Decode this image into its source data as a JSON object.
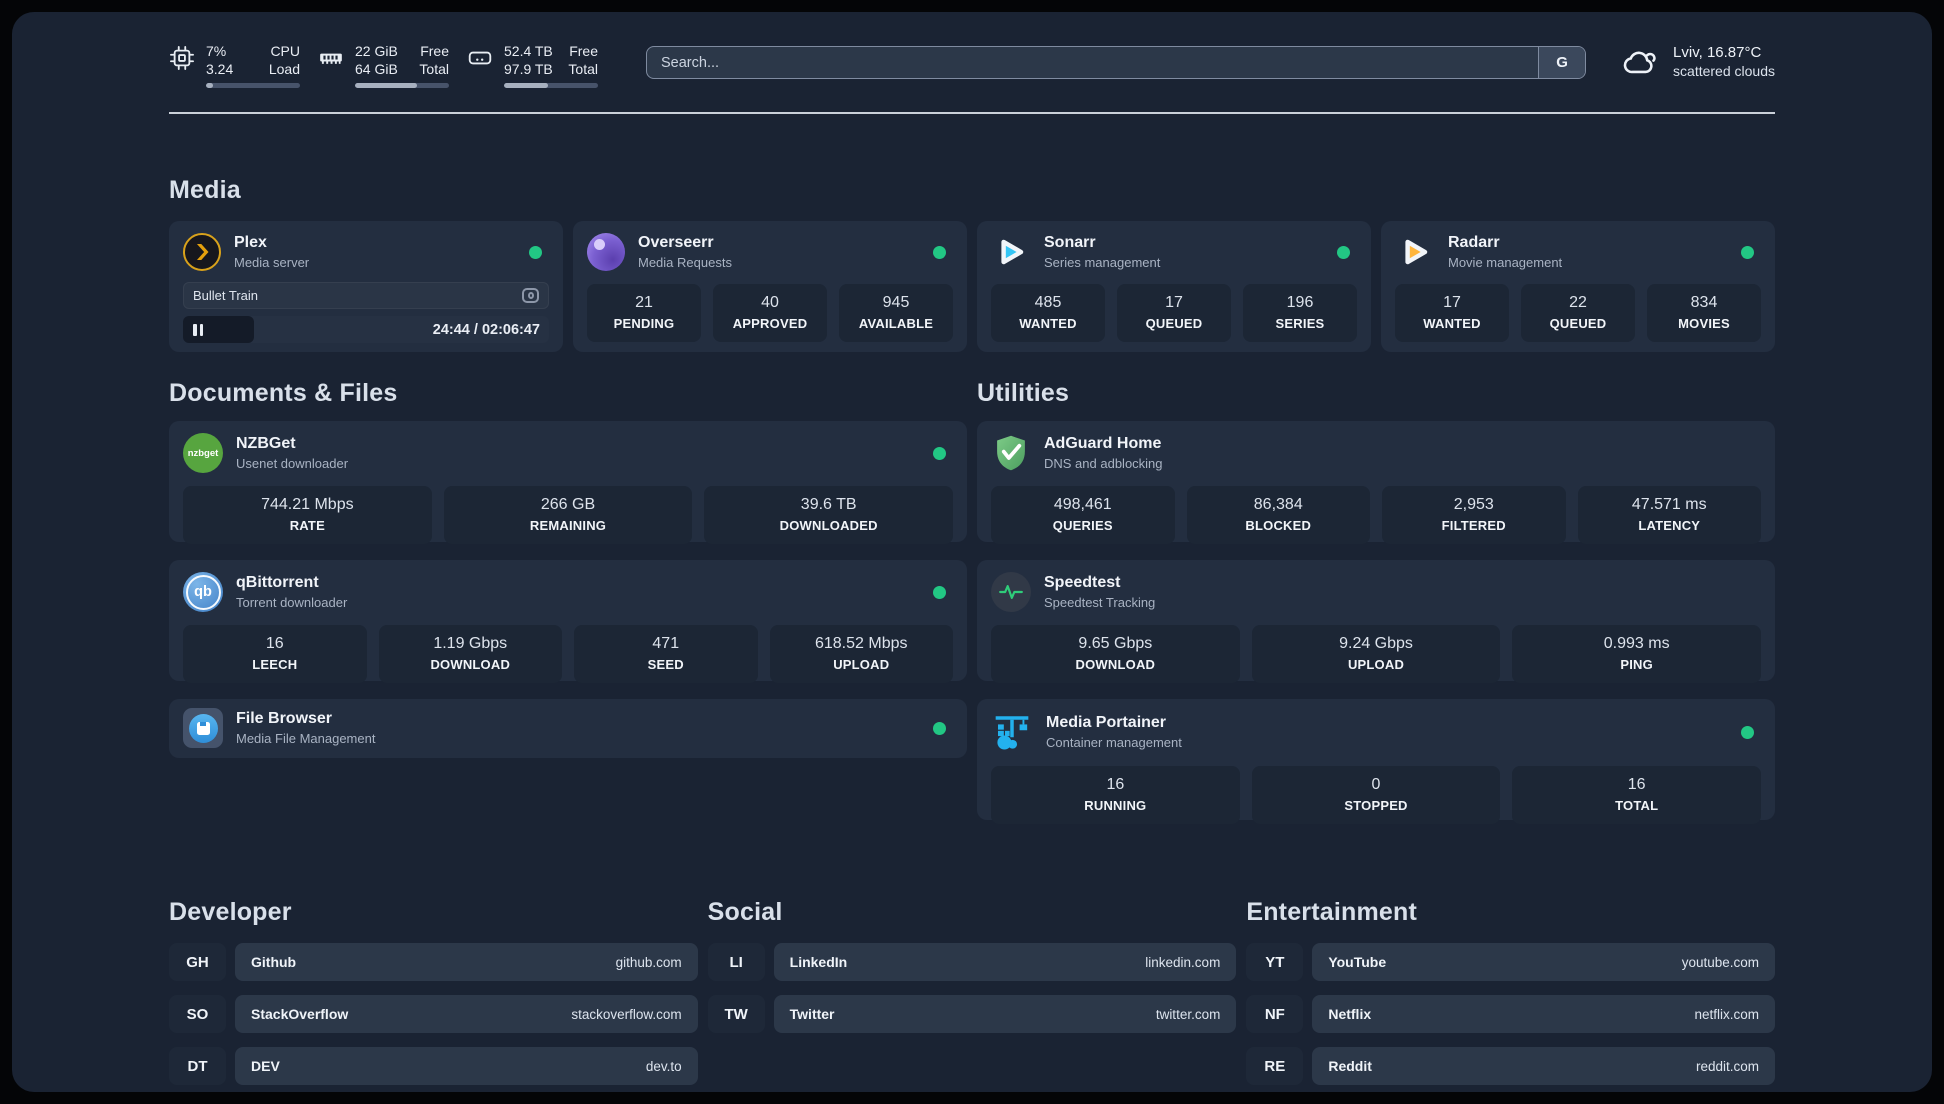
{
  "header": {
    "cpu": {
      "line1": "7%",
      "line2": "3.24",
      "label1": "CPU",
      "label2": "Load",
      "progress_pct": 7
    },
    "memory": {
      "line1": "22 GiB",
      "line2": "64 GiB",
      "label1": "Free",
      "label2": "Total",
      "progress_pct": 66
    },
    "storage": {
      "line1": "52.4 TB",
      "line2": "97.9 TB",
      "label1": "Free",
      "label2": "Total",
      "progress_pct": 47
    },
    "search": {
      "placeholder": "Search...",
      "engine_button": "G"
    },
    "weather": {
      "title": "Lviv, 16.87°C",
      "subtitle": "scattered clouds"
    }
  },
  "sections": {
    "media": "Media",
    "documents": "Documents & Files",
    "utilities": "Utilities",
    "developer": "Developer",
    "social": "Social",
    "entertainment": "Entertainment"
  },
  "apps": {
    "plex": {
      "name": "Plex",
      "description": "Media server",
      "status": "online",
      "player": {
        "title": "Bullet Train",
        "time": "24:44 / 02:06:47",
        "progress_pct": 19.5
      }
    },
    "overseerr": {
      "name": "Overseerr",
      "description": "Media Requests",
      "status": "online",
      "stats": [
        {
          "value": "21",
          "label": "PENDING"
        },
        {
          "value": "40",
          "label": "APPROVED"
        },
        {
          "value": "945",
          "label": "AVAILABLE"
        }
      ]
    },
    "sonarr": {
      "name": "Sonarr",
      "description": "Series management",
      "status": "online",
      "stats": [
        {
          "value": "485",
          "label": "WANTED"
        },
        {
          "value": "17",
          "label": "QUEUED"
        },
        {
          "value": "196",
          "label": "SERIES"
        }
      ]
    },
    "radarr": {
      "name": "Radarr",
      "description": "Movie management",
      "status": "online",
      "stats": [
        {
          "value": "17",
          "label": "WANTED"
        },
        {
          "value": "22",
          "label": "QUEUED"
        },
        {
          "value": "834",
          "label": "MOVIES"
        }
      ]
    },
    "nzbget": {
      "name": "NZBGet",
      "description": "Usenet downloader",
      "status": "online",
      "icon_text": "nzbget",
      "stats": [
        {
          "value": "744.21 Mbps",
          "label": "RATE"
        },
        {
          "value": "266 GB",
          "label": "REMAINING"
        },
        {
          "value": "39.6 TB",
          "label": "DOWNLOADED"
        }
      ]
    },
    "qbittorrent": {
      "name": "qBittorrent",
      "description": "Torrent downloader",
      "status": "online",
      "icon_text": "qb",
      "stats": [
        {
          "value": "16",
          "label": "LEECH"
        },
        {
          "value": "1.19 Gbps",
          "label": "DOWNLOAD"
        },
        {
          "value": "471",
          "label": "SEED"
        },
        {
          "value": "618.52 Mbps",
          "label": "UPLOAD"
        }
      ]
    },
    "filebrowser": {
      "name": "File Browser",
      "description": "Media File Management",
      "status": "online"
    },
    "adguard": {
      "name": "AdGuard Home",
      "description": "DNS and adblocking",
      "stats": [
        {
          "value": "498,461",
          "label": "QUERIES"
        },
        {
          "value": "86,384",
          "label": "BLOCKED"
        },
        {
          "value": "2,953",
          "label": "FILTERED"
        },
        {
          "value": "47.571 ms",
          "label": "LATENCY"
        }
      ]
    },
    "speedtest": {
      "name": "Speedtest",
      "description": "Speedtest Tracking",
      "stats": [
        {
          "value": "9.65 Gbps",
          "label": "DOWNLOAD"
        },
        {
          "value": "9.24 Gbps",
          "label": "UPLOAD"
        },
        {
          "value": "0.993 ms",
          "label": "PING"
        }
      ]
    },
    "portainer": {
      "name": "Media Portainer",
      "description": "Container management",
      "status": "online",
      "stats": [
        {
          "value": "16",
          "label": "RUNNING"
        },
        {
          "value": "0",
          "label": "STOPPED"
        },
        {
          "value": "16",
          "label": "TOTAL"
        }
      ]
    }
  },
  "links": {
    "developer": [
      {
        "abbr": "GH",
        "name": "Github",
        "url": "github.com"
      },
      {
        "abbr": "SO",
        "name": "StackOverflow",
        "url": "stackoverflow.com"
      },
      {
        "abbr": "DT",
        "name": "DEV",
        "url": "dev.to"
      }
    ],
    "social": [
      {
        "abbr": "LI",
        "name": "LinkedIn",
        "url": "linkedin.com"
      },
      {
        "abbr": "TW",
        "name": "Twitter",
        "url": "twitter.com"
      }
    ],
    "entertainment": [
      {
        "abbr": "YT",
        "name": "YouTube",
        "url": "youtube.com"
      },
      {
        "abbr": "NF",
        "name": "Netflix",
        "url": "netflix.com"
      },
      {
        "abbr": "RE",
        "name": "Reddit",
        "url": "reddit.com"
      }
    ]
  },
  "colors": {
    "status_online": "#22c784",
    "plex_gold": "#e5a00d",
    "overseerr_purple": "#7a5fd0",
    "sonarr_blue": "#35c5f4",
    "radarr_amber": "#ffb53c",
    "nzbget_green": "#57a53f",
    "qbittorrent_blue": "#4687c6",
    "filebrowser_blue": "#3fa3e8",
    "adguard_green": "#67b279",
    "speedtest_green": "#2fcd7a",
    "portainer_blue": "#23b1ee"
  }
}
